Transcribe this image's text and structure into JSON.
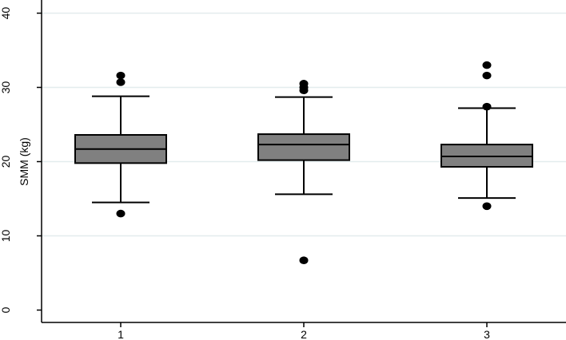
{
  "chart_data": {
    "type": "boxplot",
    "title": "",
    "xlabel": "",
    "ylabel": "SMM (kg)",
    "ylim": [
      -2,
      42
    ],
    "yticks": [
      0,
      10,
      20,
      30,
      40
    ],
    "grid": true,
    "categories": [
      "1",
      "2",
      "3"
    ],
    "box_color": "#808080",
    "grid_color": "#e3ecee",
    "boxes": [
      {
        "category": "1",
        "whisker_low": 14.5,
        "q1": 19.8,
        "median": 21.7,
        "q3": 23.6,
        "whisker_high": 28.8,
        "outliers": [
          13.0,
          30.7,
          31.6
        ]
      },
      {
        "category": "2",
        "whisker_low": 15.6,
        "q1": 20.2,
        "median": 22.3,
        "q3": 23.7,
        "whisker_high": 28.7,
        "outliers": [
          6.7,
          29.6,
          30.0,
          30.5
        ]
      },
      {
        "category": "3",
        "whisker_low": 15.1,
        "q1": 19.3,
        "median": 20.7,
        "q3": 22.3,
        "whisker_high": 27.2,
        "outliers": [
          14.0,
          27.4,
          31.6,
          33.0
        ]
      }
    ]
  }
}
